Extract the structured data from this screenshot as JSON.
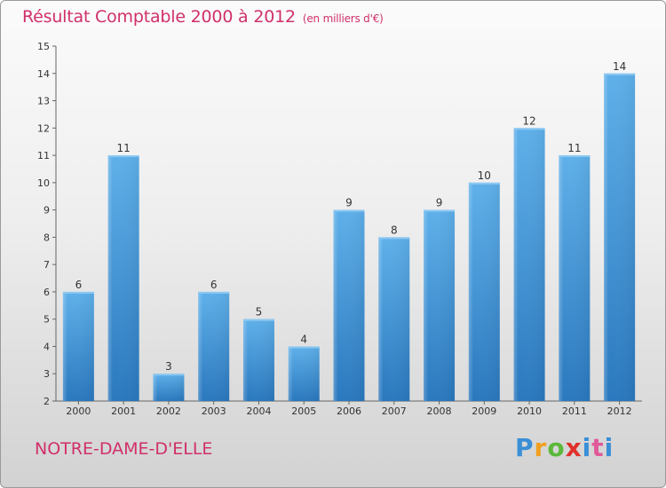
{
  "header": {
    "title": "Résultat Comptable 2000 à 2012",
    "unit": "(en milliers d'€)"
  },
  "commune": "NOTRE-DAME-D'ELLE",
  "logo": {
    "letters": [
      "P",
      "r",
      "o",
      "x",
      "i",
      "t",
      "i"
    ],
    "colors": [
      "#3a8fd6",
      "#f0a020",
      "#5bb83a",
      "#e0302a",
      "#3a8fd6",
      "#e05a9a",
      "#3a8fd6"
    ]
  },
  "colors": {
    "bar": "#3f97dc",
    "bar_light": "#5fb0ea",
    "bar_dark": "#2a78be",
    "text_accent": "#d0306a"
  },
  "chart_data": {
    "type": "bar",
    "title": "Résultat Comptable 2000 à 2012",
    "subtitle": "(en milliers d'€)",
    "xlabel": "",
    "ylabel": "",
    "categories": [
      "2000",
      "2001",
      "2002",
      "2003",
      "2004",
      "2005",
      "2006",
      "2007",
      "2008",
      "2009",
      "2010",
      "2011",
      "2012"
    ],
    "values": [
      6,
      11,
      3,
      6,
      5,
      4,
      9,
      8,
      9,
      10,
      12,
      11,
      14
    ],
    "ylim": [
      2,
      15
    ],
    "yticks": [
      2,
      3,
      4,
      5,
      6,
      7,
      8,
      9,
      10,
      11,
      12,
      13,
      14,
      15
    ],
    "grid": false,
    "legend": "none"
  }
}
